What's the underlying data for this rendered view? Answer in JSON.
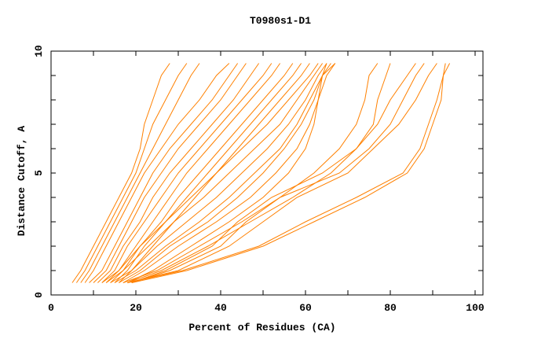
{
  "chart_data": {
    "type": "line",
    "title": "T0980s1-D1",
    "xlabel": "Percent of Residues (CA)",
    "ylabel": "Distance Cutoff, A",
    "xlim": [
      0,
      102
    ],
    "ylim": [
      0,
      10
    ],
    "x_tick_labels": [
      "0",
      "20",
      "40",
      "60",
      "80",
      "100"
    ],
    "y_tick_labels": [
      "0",
      "5",
      "10"
    ],
    "grid": false,
    "line_color": "#ff8000",
    "y_levels": [
      0.5,
      1,
      2,
      3,
      4,
      5,
      6,
      7,
      8,
      9,
      9.5
    ],
    "series": [
      {
        "x": [
          5,
          7,
          10,
          13,
          16,
          19,
          21,
          22,
          24,
          26,
          28
        ]
      },
      {
        "x": [
          6,
          8,
          11,
          14,
          17,
          20,
          22,
          24,
          27,
          30,
          32
        ]
      },
      {
        "x": [
          7,
          9,
          12,
          15,
          18,
          21,
          24,
          27,
          30,
          33,
          35
        ]
      },
      {
        "x": [
          8,
          10,
          13,
          16,
          19,
          22,
          26,
          30,
          35,
          39,
          42
        ]
      },
      {
        "x": [
          9,
          12,
          15,
          18,
          21,
          24,
          28,
          33,
          38,
          42,
          44
        ]
      },
      {
        "x": [
          10,
          13,
          16,
          19,
          22,
          26,
          30,
          35,
          40,
          44,
          46
        ]
      },
      {
        "x": [
          11,
          14,
          17,
          21,
          24,
          28,
          33,
          38,
          43,
          47,
          49
        ]
      },
      {
        "x": [
          12,
          15,
          18,
          22,
          26,
          30,
          35,
          40,
          45,
          50,
          52
        ]
      },
      {
        "x": [
          13,
          16,
          20,
          24,
          28,
          32,
          37,
          42,
          47,
          52,
          54
        ]
      },
      {
        "x": [
          14,
          17,
          21,
          26,
          30,
          35,
          40,
          45,
          50,
          55,
          57
        ]
      },
      {
        "x": [
          15,
          18,
          22,
          27,
          32,
          37,
          42,
          47,
          52,
          57,
          59
        ]
      },
      {
        "x": [
          16,
          19,
          24,
          29,
          34,
          39,
          44,
          49,
          54,
          59,
          61
        ]
      },
      {
        "x": [
          12,
          16,
          21,
          27,
          33,
          39,
          45,
          51,
          56,
          61,
          63
        ]
      },
      {
        "x": [
          13,
          17,
          23,
          29,
          36,
          42,
          48,
          54,
          58,
          62,
          64
        ]
      },
      {
        "x": [
          14,
          19,
          25,
          32,
          39,
          45,
          51,
          56,
          60,
          63,
          65
        ]
      },
      {
        "x": [
          15,
          20,
          27,
          35,
          42,
          48,
          54,
          58,
          61,
          64,
          66
        ]
      },
      {
        "x": [
          16,
          21,
          28,
          37,
          44,
          50,
          55,
          59,
          62,
          64,
          67
        ]
      },
      {
        "x": [
          17,
          22,
          30,
          39,
          47,
          53,
          58,
          61,
          63,
          65,
          67
        ]
      },
      {
        "x": [
          18,
          24,
          33,
          42,
          50,
          56,
          60,
          62,
          63,
          64,
          65
        ]
      },
      {
        "x": [
          17,
          25,
          35,
          45,
          54,
          62,
          68,
          72,
          74,
          75,
          77
        ]
      },
      {
        "x": [
          18,
          26,
          37,
          47,
          57,
          66,
          72,
          76,
          77,
          79,
          80
        ]
      },
      {
        "x": [
          19,
          27,
          38,
          44,
          52,
          64,
          72,
          77,
          80,
          84,
          86
        ]
      },
      {
        "x": [
          19,
          28,
          40,
          46,
          54,
          68,
          75,
          80,
          83,
          86,
          88
        ]
      },
      {
        "x": [
          18,
          30,
          42,
          50,
          58,
          70,
          76,
          82,
          86,
          89,
          91
        ]
      },
      {
        "x": [
          18,
          31,
          49,
          60,
          72,
          83,
          87,
          89,
          91,
          92.5,
          93
        ]
      },
      {
        "x": [
          19,
          32,
          50,
          62,
          74,
          84,
          88,
          90,
          92,
          92.5,
          94
        ]
      }
    ]
  }
}
